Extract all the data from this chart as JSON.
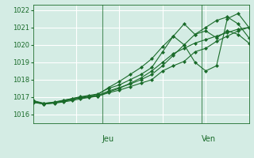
{
  "bg_color": "#d4ece4",
  "grid_color": "#ffffff",
  "line_color": "#1a6b2a",
  "ylim": [
    1015.5,
    1022.3
  ],
  "yticks": [
    1016,
    1017,
    1018,
    1019,
    1020,
    1021,
    1022
  ],
  "xlabel_jeu": 0.32,
  "xlabel_ven": 0.78,
  "lines": [
    [
      0.0,
      1016.75,
      0.05,
      1016.63,
      0.1,
      1016.72,
      0.14,
      1016.82,
      0.18,
      1016.9,
      0.22,
      1017.0,
      0.26,
      1017.05,
      0.3,
      1017.1,
      0.35,
      1017.35,
      0.4,
      1017.55,
      0.45,
      1017.75,
      0.5,
      1018.0,
      0.55,
      1018.3,
      0.6,
      1018.8,
      0.65,
      1019.4,
      0.7,
      1020.0,
      0.75,
      1020.6,
      0.8,
      1021.0,
      0.85,
      1021.4,
      0.9,
      1021.6,
      0.95,
      1021.2,
      1.0,
      1020.4
    ],
    [
      0.0,
      1016.7,
      0.05,
      1016.6,
      0.1,
      1016.68,
      0.14,
      1016.78,
      0.18,
      1016.88,
      0.22,
      1016.95,
      0.26,
      1017.0,
      0.3,
      1017.05,
      0.35,
      1017.25,
      0.4,
      1017.4,
      0.45,
      1017.6,
      0.5,
      1017.8,
      0.55,
      1018.0,
      0.6,
      1018.5,
      0.65,
      1018.8,
      0.7,
      1019.05,
      0.75,
      1019.6,
      0.8,
      1019.8,
      0.85,
      1020.2,
      0.9,
      1020.5,
      0.95,
      1020.8,
      1.0,
      1021.0
    ],
    [
      0.0,
      1016.8,
      0.05,
      1016.65,
      0.1,
      1016.7,
      0.14,
      1016.8,
      0.18,
      1016.92,
      0.22,
      1017.02,
      0.26,
      1017.1,
      0.3,
      1017.18,
      0.35,
      1017.5,
      0.4,
      1017.7,
      0.45,
      1018.0,
      0.5,
      1018.3,
      0.55,
      1018.7,
      0.6,
      1019.6,
      0.65,
      1020.5,
      0.7,
      1020.0,
      0.75,
      1019.0,
      0.8,
      1018.5,
      0.85,
      1018.8,
      0.9,
      1021.5,
      0.95,
      1021.8,
      1.0,
      1021.0
    ],
    [
      0.0,
      1016.78,
      0.05,
      1016.62,
      0.1,
      1016.68,
      0.14,
      1016.75,
      0.18,
      1016.85,
      0.22,
      1016.98,
      0.26,
      1017.05,
      0.3,
      1017.15,
      0.35,
      1017.55,
      0.4,
      1017.9,
      0.45,
      1018.3,
      0.5,
      1018.7,
      0.55,
      1019.2,
      0.6,
      1019.9,
      0.65,
      1020.5,
      0.7,
      1021.2,
      0.75,
      1020.6,
      0.8,
      1020.8,
      0.85,
      1020.4,
      0.9,
      1020.8,
      0.95,
      1020.6,
      1.0,
      1020.1
    ],
    [
      0.0,
      1016.72,
      0.05,
      1016.6,
      0.1,
      1016.65,
      0.14,
      1016.72,
      0.18,
      1016.8,
      0.22,
      1016.9,
      0.26,
      1016.98,
      0.3,
      1017.05,
      0.35,
      1017.3,
      0.4,
      1017.5,
      0.45,
      1017.8,
      0.5,
      1018.1,
      0.55,
      1018.5,
      0.6,
      1019.0,
      0.65,
      1019.5,
      0.7,
      1019.8,
      0.75,
      1020.1,
      0.8,
      1020.3,
      0.85,
      1020.5,
      0.9,
      1020.7,
      0.95,
      1020.9,
      1.0,
      1021.0
    ]
  ]
}
